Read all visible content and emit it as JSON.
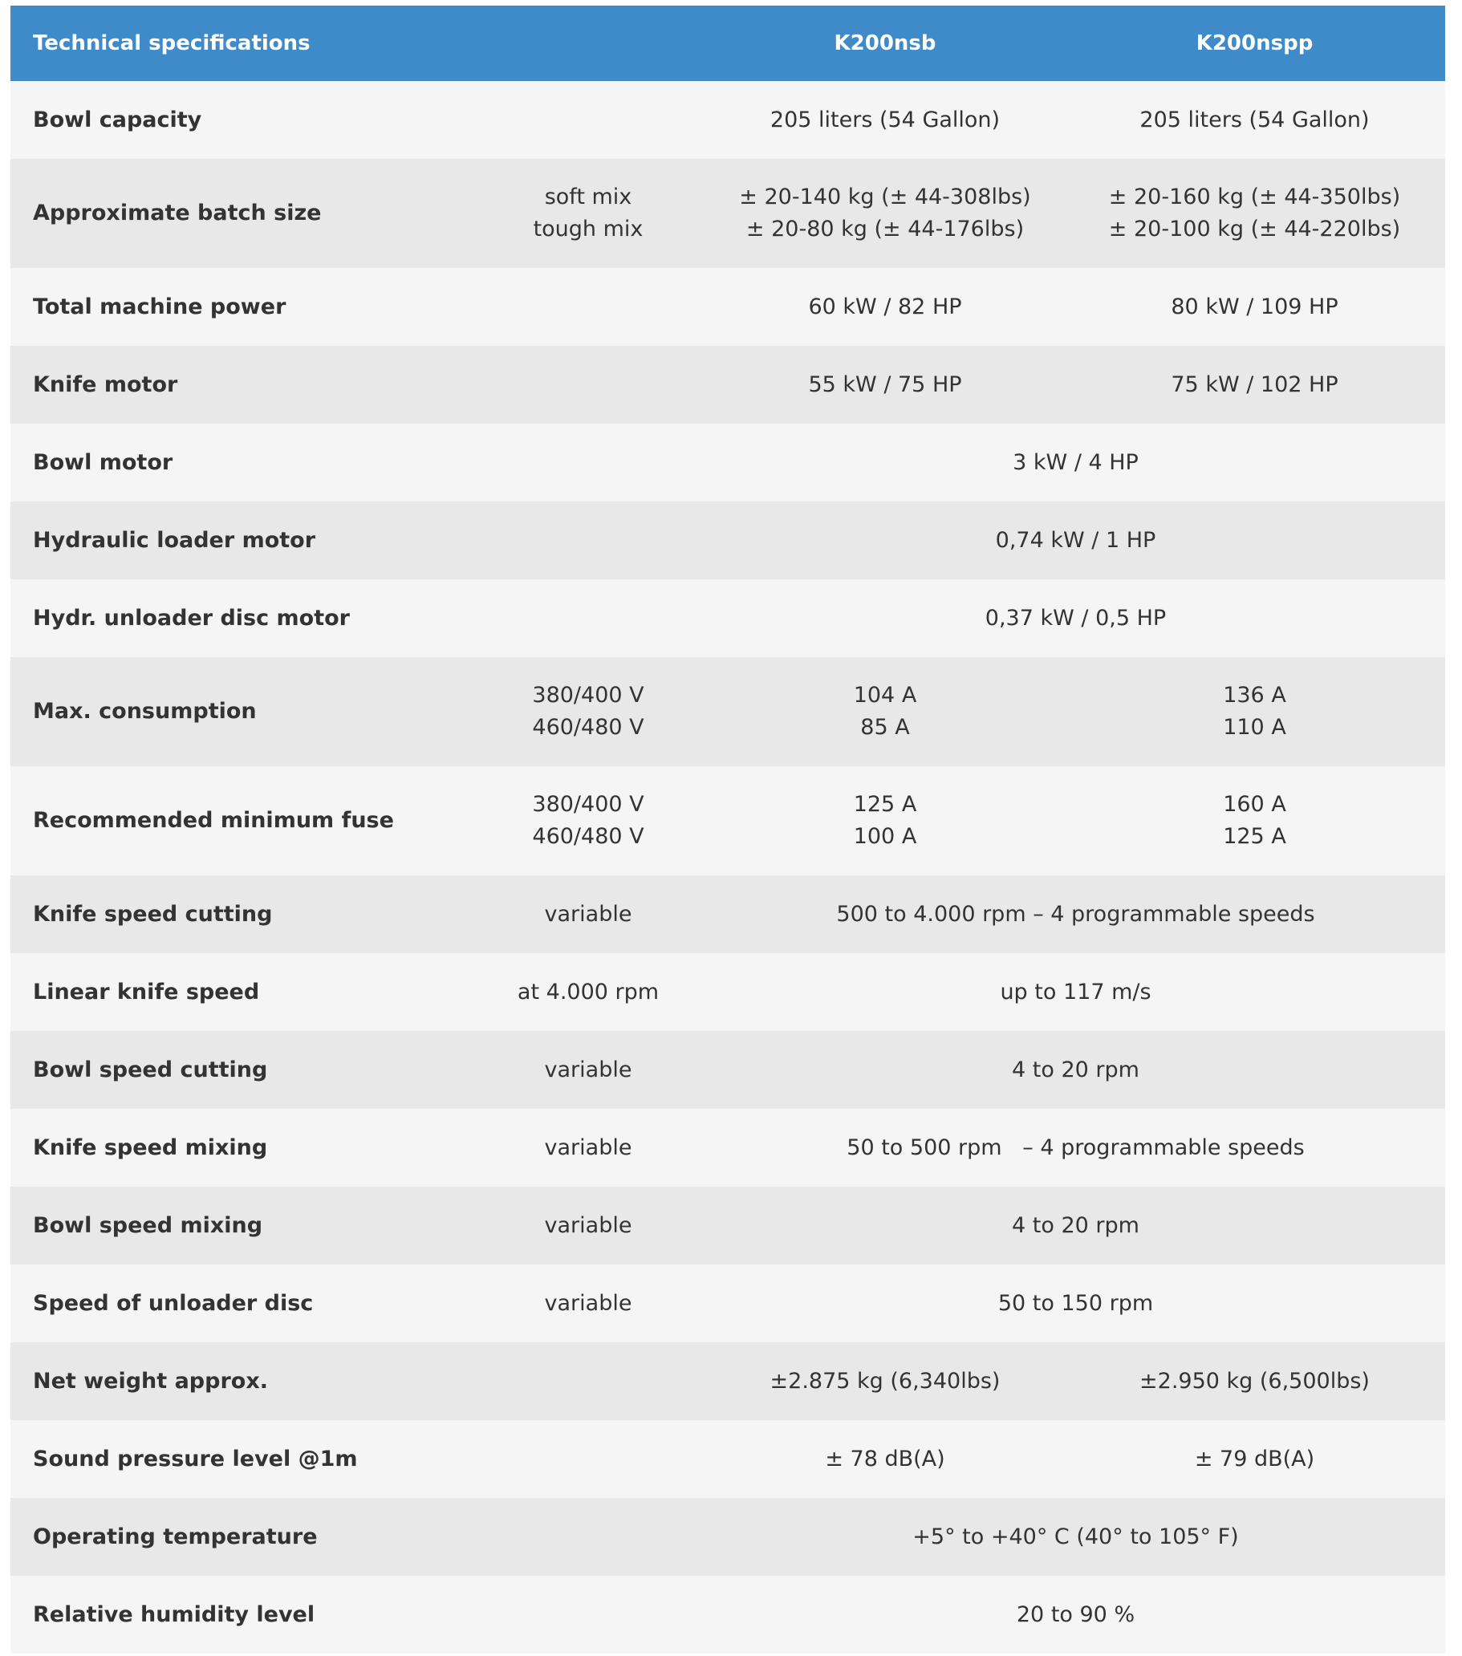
{
  "table": {
    "header": [
      "Technical specifications",
      "K200nsb",
      "K200nspp"
    ],
    "rows": [
      {
        "label": "Bowl capacity",
        "values": [
          "205 liters (54 Gallon)",
          "205 liters (54 Gallon)"
        ]
      },
      {
        "label": "Approximate batch size",
        "condition": [
          "soft mix",
          "tough mix"
        ],
        "values": [
          [
            "± 20-140 kg (± 44-308lbs)",
            "± 20-80 kg (± 44-176lbs)"
          ],
          [
            "± 20-160 kg (± 44-350lbs)",
            "± 20-100 kg (± 44-220lbs)"
          ]
        ]
      },
      {
        "label": "Total machine power",
        "values": [
          "60 kW / 82 HP",
          "80 kW / 109 HP"
        ]
      },
      {
        "label": "Knife motor",
        "values": [
          "55 kW / 75 HP",
          "75 kW / 102 HP"
        ]
      },
      {
        "label": "Bowl motor",
        "values": [
          "3 kW / 4 HP"
        ]
      },
      {
        "label": "Hydraulic loader motor",
        "values": [
          "0,74 kW / 1 HP"
        ]
      },
      {
        "label": "Hydr. unloader disc motor",
        "values": [
          "0,37 kW / 0,5 HP"
        ]
      },
      {
        "label": "Max. consumption",
        "condition": [
          "380/400 V",
          "460/480 V"
        ],
        "values": [
          [
            "104 A",
            "85 A"
          ],
          [
            "136 A",
            "110 A"
          ]
        ]
      },
      {
        "label": "Recommended minimum fuse",
        "condition": [
          "380/400 V",
          "460/480 V"
        ],
        "values": [
          [
            "125 A",
            "100 A"
          ],
          [
            "160 A",
            "125 A"
          ]
        ]
      },
      {
        "label": "Knife speed cutting",
        "condition": "variable",
        "values": [
          "500 to 4.000 rpm – 4 programmable speeds"
        ]
      },
      {
        "label": "Linear knife speed",
        "condition": "at 4.000 rpm",
        "values": [
          "up to 117 m/s"
        ]
      },
      {
        "label": "Bowl speed cutting",
        "condition": "variable",
        "values": [
          "4 to 20 rpm"
        ]
      },
      {
        "label": "Knife speed mixing",
        "condition": "variable",
        "values": [
          "50 to 500 rpm   – 4 programmable speeds"
        ]
      },
      {
        "label": "Bowl speed mixing",
        "condition": "variable",
        "values": [
          "4 to 20 rpm"
        ]
      },
      {
        "label": "Speed of unloader disc",
        "condition": "variable",
        "values": [
          "50 to 150 rpm"
        ]
      },
      {
        "label": "Net weight approx.",
        "values": [
          "±2.875 kg (6,340lbs)",
          "±2.950 kg (6,500lbs)"
        ]
      },
      {
        "label": "Sound pressure level @1m",
        "values": [
          "± 78 dB(A)",
          "± 79 dB(A)"
        ]
      },
      {
        "label": "Operating temperature",
        "values": [
          "+5° to +40° C (40° to 105° F)"
        ]
      },
      {
        "label": "Relative humidity level",
        "values": [
          "20 to 90 %"
        ]
      }
    ]
  }
}
